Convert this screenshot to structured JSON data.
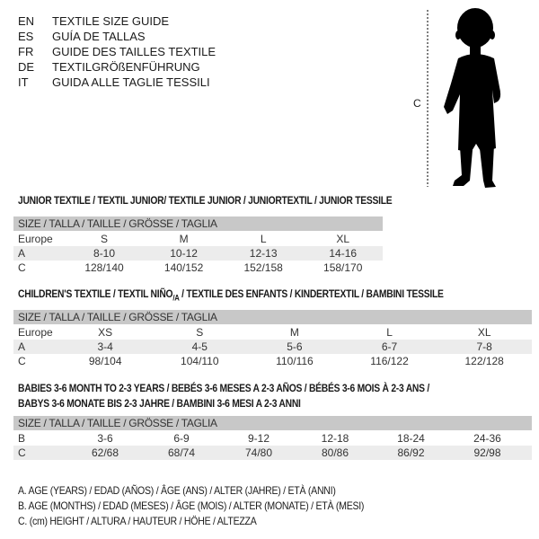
{
  "languages": [
    {
      "code": "EN",
      "title": "TEXTILE SIZE GUIDE"
    },
    {
      "code": "ES",
      "title": "GUÍA DE TALLAS"
    },
    {
      "code": "FR",
      "title": "GUIDE DES TAILLES TEXTILE"
    },
    {
      "code": "DE",
      "title": "TEXTILGRÖßENFÜHRUNG"
    },
    {
      "code": "IT",
      "title": "GUIDA ALLE TAGLIE TESSILI"
    }
  ],
  "figure": {
    "height_label": "C",
    "icon": "child-silhouette"
  },
  "junior": {
    "heading": "JUNIOR TEXTILE / TEXTIL JUNIOR/ TEXTILE JUNIOR / JUNIORTEXTIL / JUNIOR TESSILE",
    "size_header": "SIZE / TALLA / TAILLE / GRÖSSE / TAGLIA",
    "rows": [
      {
        "label": "Europe",
        "values": [
          "S",
          "M",
          "L",
          "XL"
        ]
      },
      {
        "label": "A",
        "values": [
          "8-10",
          "10-12",
          "12-13",
          "14-16"
        ]
      },
      {
        "label": "C",
        "values": [
          "128/140",
          "140/152",
          "152/158",
          "158/170"
        ]
      }
    ]
  },
  "children": {
    "heading": "CHILDREN'S TEXTILE / TEXTIL NIÑO",
    "heading_sub": "/A",
    "heading_rest": " / TEXTILE DES ENFANTS / KINDERTEXTIL / BAMBINI TESSILE",
    "size_header": "SIZE / TALLA / TAILLE / GRÖSSE / TAGLIA",
    "rows": [
      {
        "label": "Europe",
        "values": [
          "XS",
          "S",
          "M",
          "L",
          "XL"
        ]
      },
      {
        "label": "A",
        "values": [
          "3-4",
          "4-5",
          "5-6",
          "6-7",
          "7-8"
        ]
      },
      {
        "label": "C",
        "values": [
          "98/104",
          "104/110",
          "110/116",
          "116/122",
          "122/128"
        ]
      }
    ]
  },
  "babies": {
    "heading_line1": "BABIES 3-6 MONTH TO 2-3 YEARS / BEBÉS 3-6 MESES A 2-3 AÑOS / BÉBÉS 3-6 MOIS À 2-3 ANS /",
    "heading_line2": "BABYS 3-6 MONATE BIS 2-3 JAHRE / BAMBINI 3-6 MESI A 2-3 ANNI",
    "size_header": "SIZE / TALLA / TAILLE / GRÖSSE / TAGLIA",
    "rows": [
      {
        "label": "B",
        "values": [
          "3-6",
          "6-9",
          "9-12",
          "12-18",
          "18-24",
          "24-36"
        ]
      },
      {
        "label": "C",
        "values": [
          "62/68",
          "68/74",
          "74/80",
          "80/86",
          "86/92",
          "92/98"
        ]
      }
    ]
  },
  "legend": [
    "A. AGE (YEARS) / EDAD (AÑOS) / ÂGE (ANS) / ALTER (JAHRE) / ETÀ (ANNI)",
    "B. AGE (MONTHS) / EDAD (MESES) / ÂGE (MOIS) / ALTER (MONATE) / ETÀ (MESI)",
    "C. (cm) HEIGHT / ALTURA / HAUTEUR / HÖHE / ALTEZZA"
  ],
  "colors": {
    "header_bg": "#c8c8c8",
    "shade_bg": "#ececec",
    "text": "#1a1a1a"
  }
}
